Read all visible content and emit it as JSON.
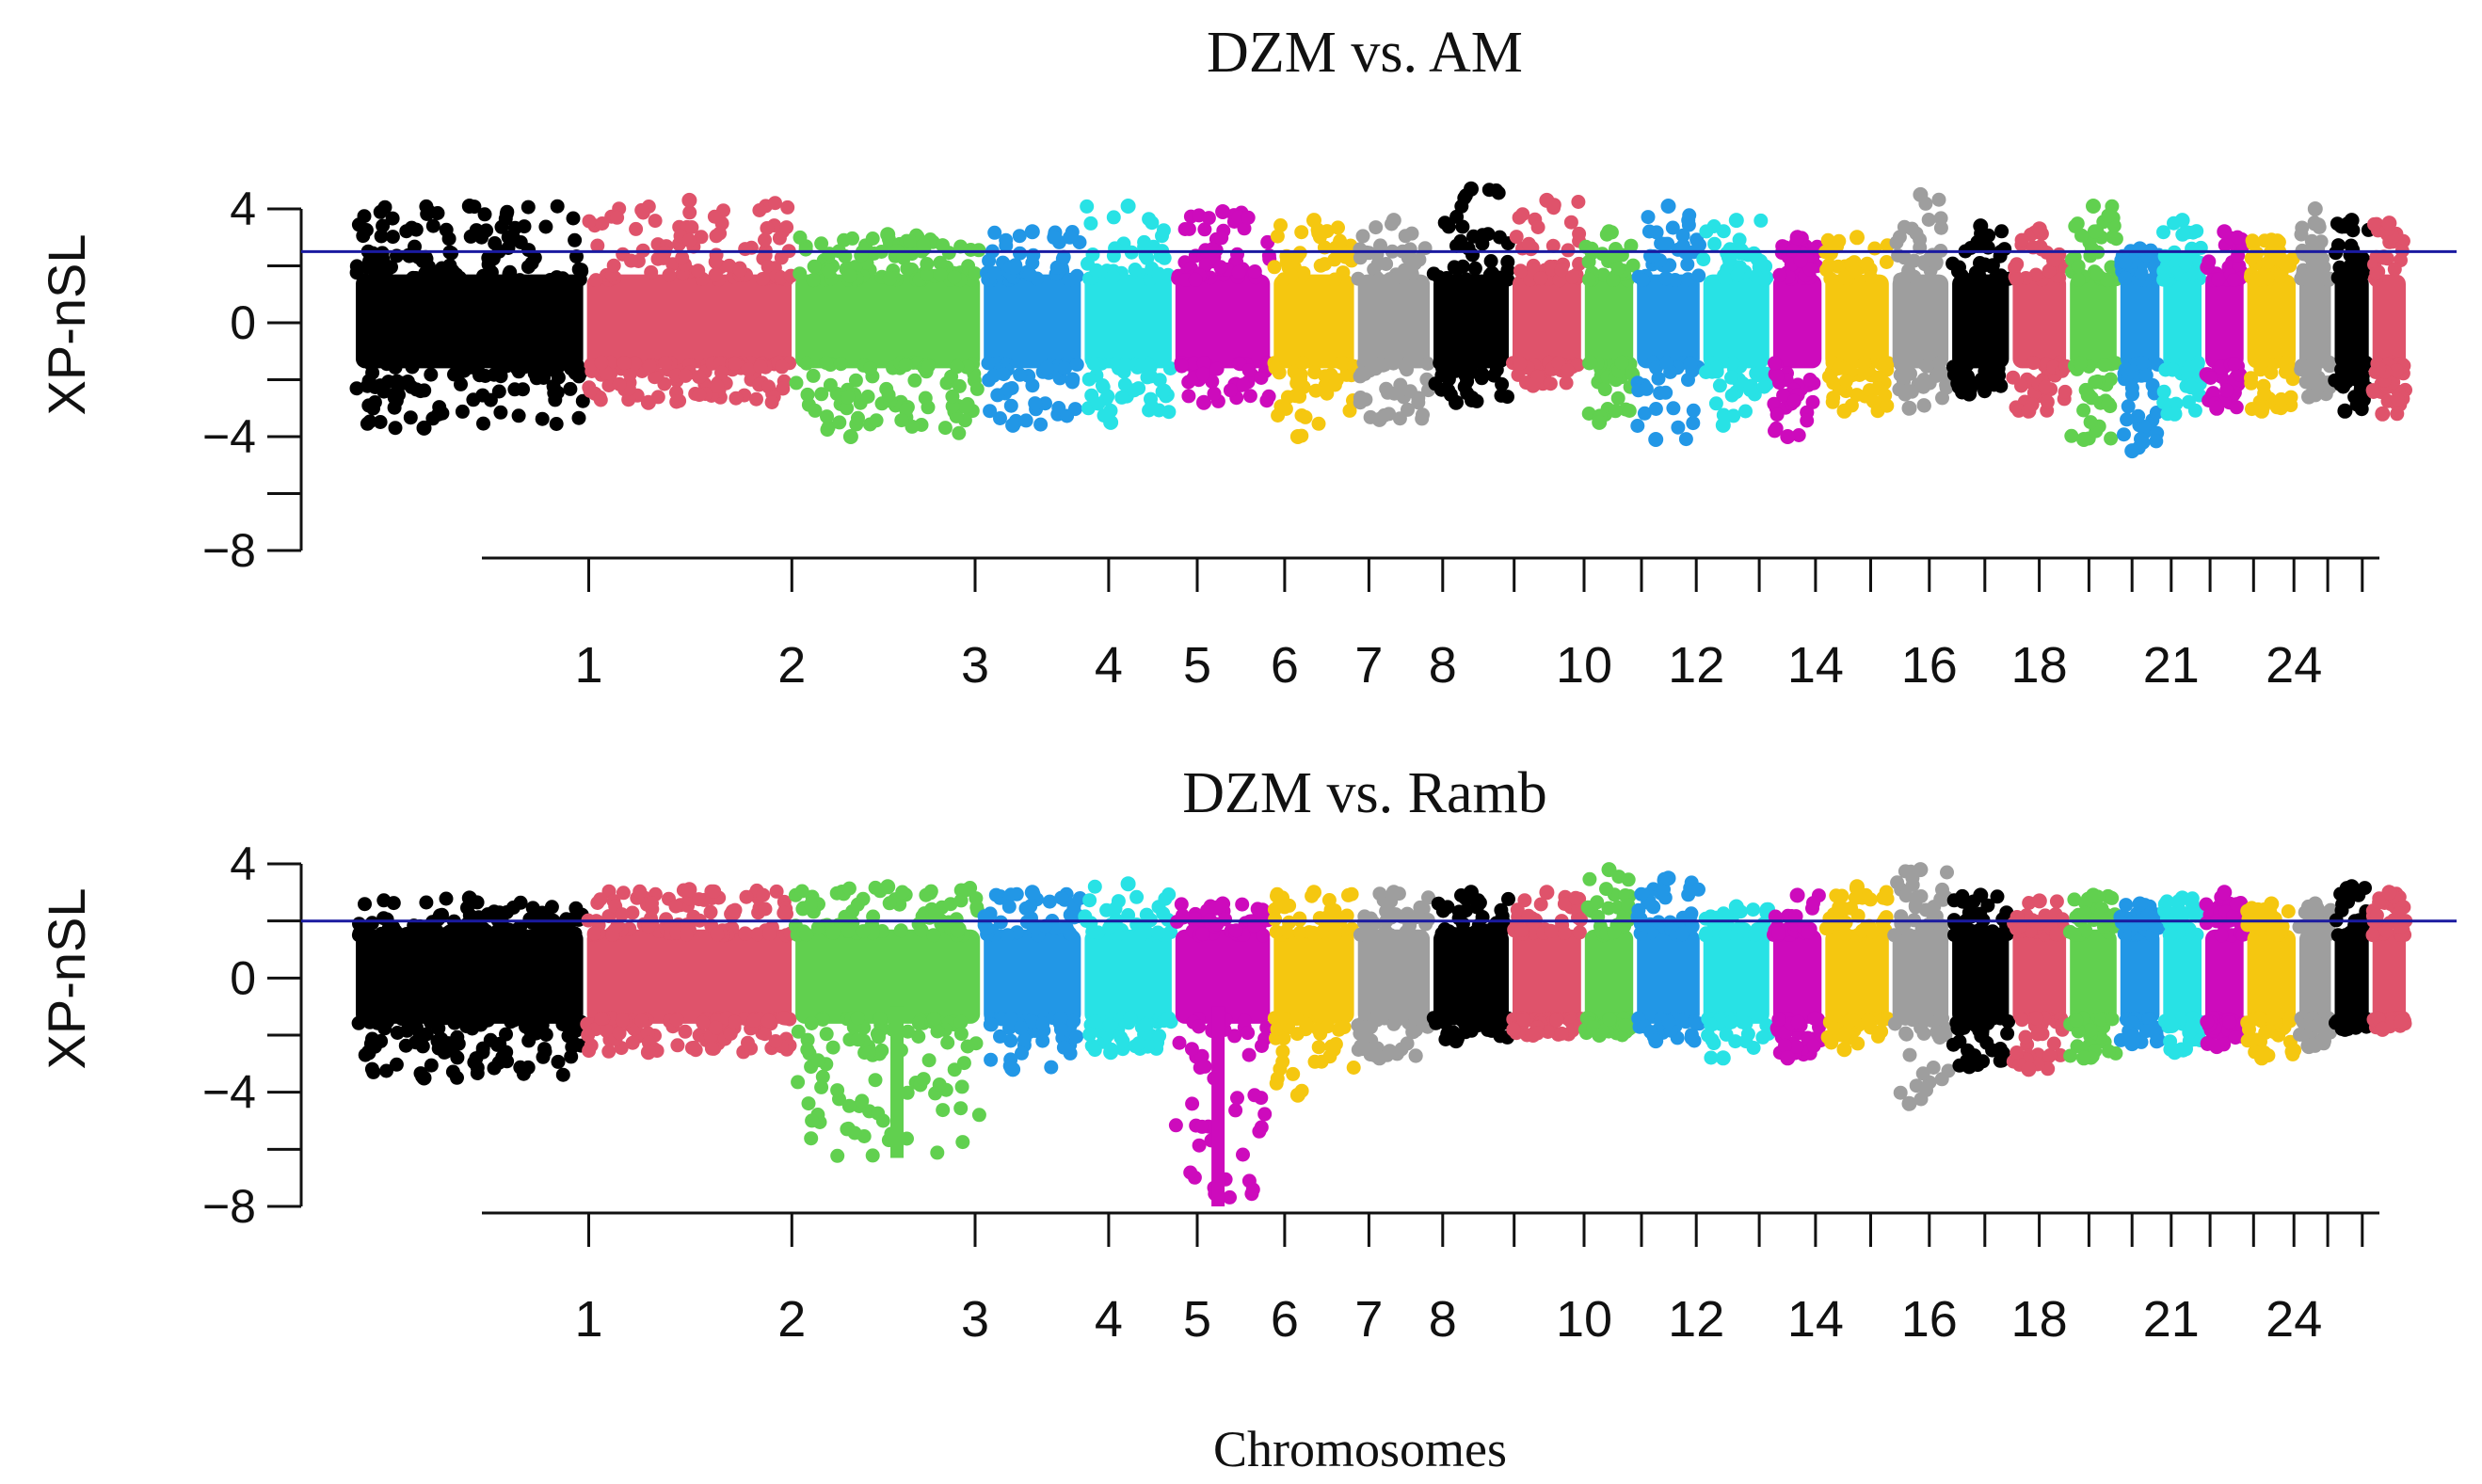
{
  "chart_data": [
    {
      "type": "scatter",
      "title": "DZM vs. AM",
      "ylabel": "XP-nSL",
      "xlabel": "",
      "ylim": [
        -8,
        4
      ],
      "yticks": [
        4,
        0,
        -4,
        -8
      ],
      "threshold": 2.5,
      "chromosome_labels": [
        "1",
        "2",
        "3",
        "4",
        "5",
        "6",
        "7",
        "8",
        "10",
        "12",
        "14",
        "16",
        "18",
        "21",
        "24"
      ],
      "chromosomes": [
        {
          "chr": "1",
          "color": "#000000",
          "min": -3.7,
          "max": 4.1
        },
        {
          "chr": "2",
          "color": "#df536b",
          "min": -2.8,
          "max": 4.3
        },
        {
          "chr": "3",
          "color": "#61d04f",
          "min": -4.0,
          "max": 3.1
        },
        {
          "chr": "4",
          "color": "#2297e6",
          "min": -3.6,
          "max": 3.2
        },
        {
          "chr": "5",
          "color": "#28e2e5",
          "min": -3.5,
          "max": 4.1
        },
        {
          "chr": "6",
          "color": "#cd0bbc",
          "min": -2.8,
          "max": 3.9
        },
        {
          "chr": "7",
          "color": "#f5c710",
          "min": -4.0,
          "max": 3.6
        },
        {
          "chr": "8",
          "color": "#9e9e9e",
          "min": -3.4,
          "max": 3.6
        },
        {
          "chr": "9",
          "color": "#000000",
          "min": -2.8,
          "max": 4.7
        },
        {
          "chr": "10",
          "color": "#df536b",
          "min": -2.2,
          "max": 4.3
        },
        {
          "chr": "11",
          "color": "#61d04f",
          "min": -3.5,
          "max": 3.2
        },
        {
          "chr": "12",
          "color": "#2297e6",
          "min": -4.1,
          "max": 4.1
        },
        {
          "chr": "13",
          "color": "#28e2e5",
          "min": -3.6,
          "max": 3.6
        },
        {
          "chr": "14",
          "color": "#cd0bbc",
          "min": -4.0,
          "max": 3.0
        },
        {
          "chr": "15",
          "color": "#f5c710",
          "min": -3.1,
          "max": 3.0
        },
        {
          "chr": "16",
          "color": "#9e9e9e",
          "min": -3.0,
          "max": 4.5
        },
        {
          "chr": "17",
          "color": "#000000",
          "min": -2.5,
          "max": 3.4
        },
        {
          "chr": "18",
          "color": "#df536b",
          "min": -3.1,
          "max": 3.3
        },
        {
          "chr": "19",
          "color": "#61d04f",
          "min": -4.1,
          "max": 4.1
        },
        {
          "chr": "20",
          "color": "#2297e6",
          "min": -4.5,
          "max": 2.6
        },
        {
          "chr": "21",
          "color": "#28e2e5",
          "min": -3.2,
          "max": 3.6
        },
        {
          "chr": "22",
          "color": "#cd0bbc",
          "min": -3.0,
          "max": 3.2
        },
        {
          "chr": "23",
          "color": "#f5c710",
          "min": -3.1,
          "max": 2.9
        },
        {
          "chr": "24",
          "color": "#9e9e9e",
          "min": -2.6,
          "max": 4.0
        },
        {
          "chr": "25",
          "color": "#000000",
          "min": -3.1,
          "max": 3.6
        },
        {
          "chr": "26",
          "color": "#df536b",
          "min": -3.2,
          "max": 3.5
        }
      ]
    },
    {
      "type": "scatter",
      "title": "DZM vs. Ramb",
      "ylabel": "XP-nSL",
      "xlabel": "Chromosomes",
      "ylim": [
        -8,
        4
      ],
      "yticks": [
        4,
        0,
        -4,
        -8
      ],
      "threshold": 2.0,
      "chromosome_labels": [
        "1",
        "2",
        "3",
        "4",
        "5",
        "6",
        "7",
        "8",
        "10",
        "12",
        "14",
        "16",
        "18",
        "21",
        "24"
      ],
      "chromosomes": [
        {
          "chr": "1",
          "color": "#000000",
          "min": -3.5,
          "max": 2.8
        },
        {
          "chr": "2",
          "color": "#df536b",
          "min": -2.6,
          "max": 3.1
        },
        {
          "chr": "3",
          "color": "#61d04f",
          "min": -6.3,
          "max": 3.2
        },
        {
          "chr": "4",
          "color": "#2297e6",
          "min": -3.2,
          "max": 3.0
        },
        {
          "chr": "5",
          "color": "#28e2e5",
          "min": -2.6,
          "max": 3.3
        },
        {
          "chr": "6",
          "color": "#cd0bbc",
          "min": -8.0,
          "max": 2.6
        },
        {
          "chr": "7",
          "color": "#f5c710",
          "min": -4.1,
          "max": 3.0
        },
        {
          "chr": "8",
          "color": "#9e9e9e",
          "min": -2.8,
          "max": 3.0
        },
        {
          "chr": "9",
          "color": "#000000",
          "min": -2.2,
          "max": 3.0
        },
        {
          "chr": "10",
          "color": "#df536b",
          "min": -2.0,
          "max": 3.0
        },
        {
          "chr": "11",
          "color": "#61d04f",
          "min": -2.0,
          "max": 3.8
        },
        {
          "chr": "12",
          "color": "#2297e6",
          "min": -2.2,
          "max": 3.5
        },
        {
          "chr": "13",
          "color": "#28e2e5",
          "min": -2.8,
          "max": 2.5
        },
        {
          "chr": "14",
          "color": "#cd0bbc",
          "min": -2.8,
          "max": 2.9
        },
        {
          "chr": "15",
          "color": "#f5c710",
          "min": -2.5,
          "max": 3.2
        },
        {
          "chr": "16",
          "color": "#9e9e9e",
          "min": -4.4,
          "max": 3.8
        },
        {
          "chr": "17",
          "color": "#000000",
          "min": -3.1,
          "max": 2.9
        },
        {
          "chr": "18",
          "color": "#df536b",
          "min": -3.2,
          "max": 2.7
        },
        {
          "chr": "19",
          "color": "#61d04f",
          "min": -2.8,
          "max": 2.9
        },
        {
          "chr": "20",
          "color": "#2297e6",
          "min": -2.3,
          "max": 2.6
        },
        {
          "chr": "21",
          "color": "#28e2e5",
          "min": -2.6,
          "max": 2.8
        },
        {
          "chr": "22",
          "color": "#cd0bbc",
          "min": -2.4,
          "max": 3.0
        },
        {
          "chr": "23",
          "color": "#f5c710",
          "min": -2.8,
          "max": 2.6
        },
        {
          "chr": "24",
          "color": "#9e9e9e",
          "min": -2.4,
          "max": 2.6
        },
        {
          "chr": "25",
          "color": "#000000",
          "min": -1.8,
          "max": 3.2
        },
        {
          "chr": "26",
          "color": "#df536b",
          "min": -1.8,
          "max": 3.0
        }
      ]
    }
  ]
}
